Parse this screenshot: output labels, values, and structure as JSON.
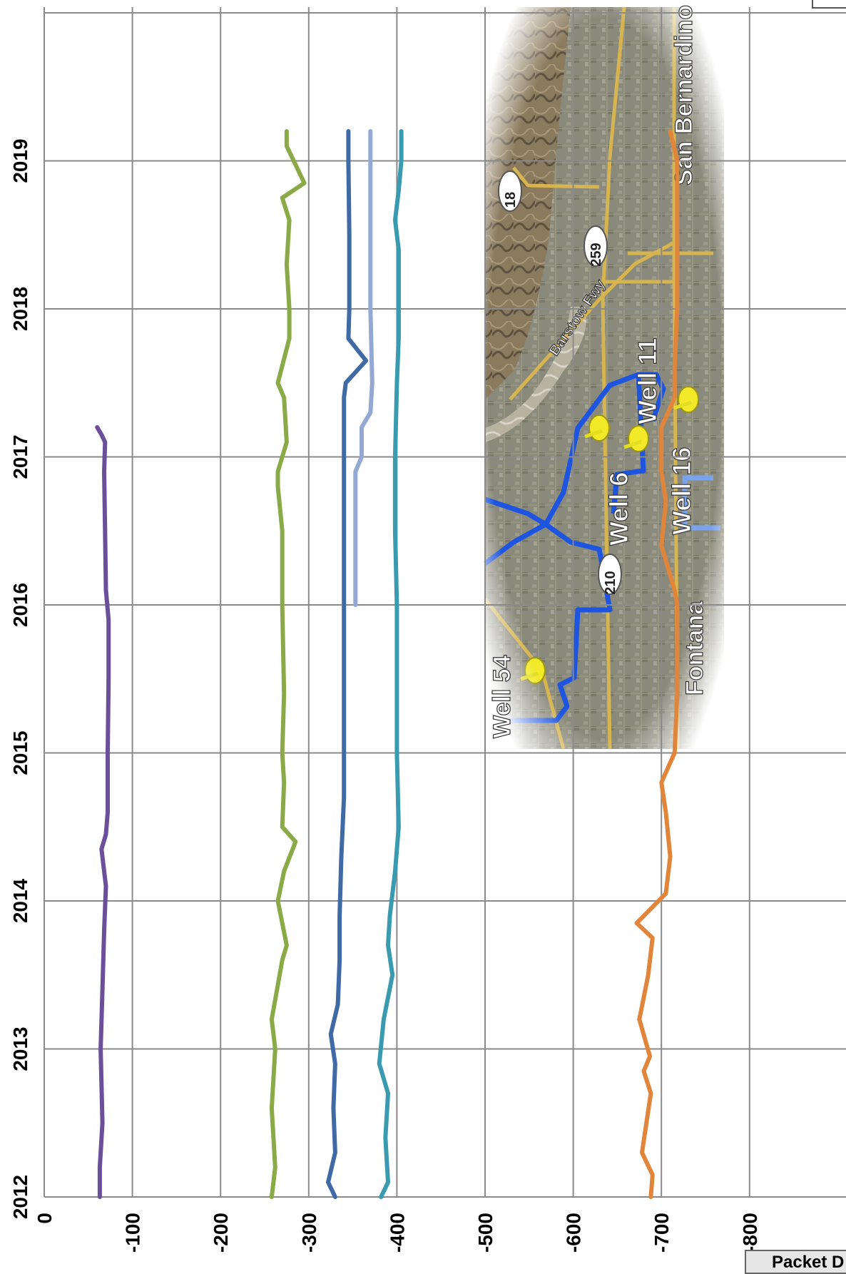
{
  "chart_data": {
    "type": "line",
    "orientation": "rotated-90-clockwise",
    "title": "",
    "xlabel": "",
    "ylabel": "",
    "x_ticks": [
      "2012",
      "2013",
      "2014",
      "2015",
      "2016",
      "2017",
      "2018",
      "2019"
    ],
    "y_ticks": [
      "0",
      "-100",
      "-200",
      "-300",
      "-400",
      "-500",
      "-600",
      "-700",
      "-800"
    ],
    "xlim": [
      2012.0,
      2020.0
    ],
    "ylim": [
      0,
      -800
    ],
    "grid": true,
    "legend": "cut off at lower-right edge",
    "legend_visible_text": "Packet D",
    "series": [
      {
        "color": "#6b4f9a",
        "x": [
          2012.0,
          2012.2,
          2012.5,
          2013.0,
          2013.4,
          2013.8,
          2014.1,
          2014.35,
          2014.45,
          2014.6,
          2015.0,
          2015.5,
          2015.9,
          2016.1,
          2016.5,
          2016.9,
          2017.1,
          2017.15,
          2017.2
        ],
        "values": [
          -63,
          -63,
          -66,
          -64,
          -66,
          -68,
          -70,
          -65,
          -70,
          -72,
          -72,
          -73,
          -73,
          -70,
          -69,
          -68,
          -69,
          -65,
          -60
        ]
      },
      {
        "color": "#8aaa48",
        "x": [
          2012.0,
          2012.2,
          2012.6,
          2013.0,
          2013.2,
          2013.6,
          2013.7,
          2014.0,
          2014.2,
          2014.4,
          2014.5,
          2014.8,
          2015.0,
          2015.4,
          2016.0,
          2016.5,
          2016.8,
          2016.9,
          2017.1,
          2017.4,
          2017.5,
          2017.8,
          2018.0,
          2018.3,
          2018.6,
          2018.75,
          2018.85,
          2019.1,
          2019.2
        ],
        "values": [
          -258,
          -262,
          -258,
          -262,
          -258,
          -270,
          -275,
          -265,
          -272,
          -285,
          -270,
          -272,
          -270,
          -272,
          -270,
          -270,
          -265,
          -265,
          -275,
          -272,
          -265,
          -278,
          -278,
          -275,
          -278,
          -270,
          -295,
          -275,
          -275
        ]
      },
      {
        "color": "#3f6aa5",
        "x": [
          2012.0,
          2012.1,
          2012.3,
          2012.6,
          2012.9,
          2013.1,
          2013.3,
          2013.6,
          2013.9,
          2014.3,
          2014.7,
          2015.0,
          2015.5,
          2016.0,
          2016.5,
          2016.9,
          2017.1,
          2017.4,
          2017.5,
          2017.65,
          2017.8,
          2018.0,
          2018.5,
          2019.0,
          2019.2
        ],
        "values": [
          -330,
          -322,
          -330,
          -328,
          -330,
          -325,
          -333,
          -335,
          -335,
          -337,
          -340,
          -340,
          -340,
          -340,
          -340,
          -340,
          -340,
          -340,
          -342,
          -365,
          -345,
          -346,
          -346,
          -345,
          -345
        ]
      },
      {
        "color": "#93a8d2",
        "x": [
          2016.0,
          2016.9,
          2017.0,
          2017.2,
          2017.3,
          2017.5,
          2018.0,
          2018.5,
          2019.0,
          2019.2
        ],
        "values": [
          -353,
          -353,
          -360,
          -360,
          -370,
          -372,
          -370,
          -370,
          -370,
          -370
        ]
      },
      {
        "color": "#3a9bb0",
        "x": [
          2012.0,
          2012.1,
          2012.4,
          2012.7,
          2012.9,
          2013.2,
          2013.5,
          2013.7,
          2013.9,
          2014.2,
          2014.5,
          2015.0,
          2015.5,
          2016.0,
          2016.5,
          2017.0,
          2017.5,
          2017.8,
          2018.0,
          2018.4,
          2018.6,
          2018.8,
          2019.0,
          2019.2
        ],
        "values": [
          -382,
          -390,
          -387,
          -390,
          -380,
          -385,
          -395,
          -390,
          -392,
          -398,
          -402,
          -400,
          -400,
          -400,
          -398,
          -398,
          -400,
          -402,
          -402,
          -402,
          -398,
          -402,
          -405,
          -405
        ]
      },
      {
        "color": "#e0853a",
        "x": [
          2012.0,
          2012.15,
          2012.3,
          2012.7,
          2012.85,
          2012.95,
          2013.2,
          2013.5,
          2013.75,
          2013.85,
          2014.05,
          2014.3,
          2014.6,
          2014.8,
          2015.0,
          2015.4,
          2016.0,
          2016.1,
          2016.4,
          2016.7,
          2016.9,
          2017.2,
          2017.4,
          2017.6,
          2018.0,
          2018.5,
          2019.0,
          2019.2
        ],
        "values": [
          -688,
          -690,
          -678,
          -688,
          -680,
          -687,
          -675,
          -685,
          -690,
          -672,
          -705,
          -710,
          -705,
          -700,
          -715,
          -718,
          -718,
          -715,
          -700,
          -705,
          -700,
          -700,
          -715,
          -715,
          -718,
          -718,
          -718,
          -710
        ]
      }
    ]
  },
  "map": {
    "labels": [
      "San Bernardino",
      "Barstow Fwy",
      "Well 11",
      "Well 6",
      "Well 16",
      "Fontana",
      "Well 54"
    ],
    "shields": [
      "18",
      "259",
      "210"
    ]
  }
}
